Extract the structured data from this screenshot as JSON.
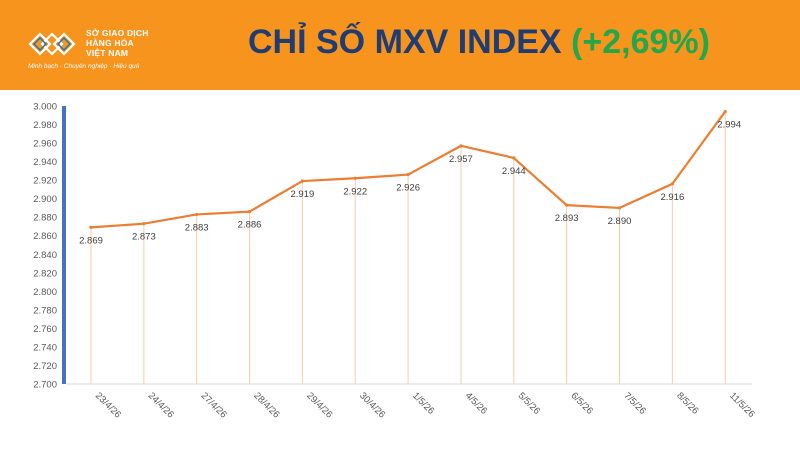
{
  "header": {
    "logo": {
      "line1": "SỞ GIAO DỊCH",
      "line2": "HÀNG HÓA",
      "line3": "VIỆT NAM",
      "slogan": "Minh bạch · Chuyên nghiệp · Hiệu quả"
    },
    "title": "CHỈ SỐ MXV INDEX",
    "change": "(+2,69%)"
  },
  "colors": {
    "header_bg": "#f7941d",
    "title": "#1f3d73",
    "change": "#22a84a",
    "line": "#ed7d31",
    "axis_bar": "#4472c4"
  },
  "chart_data": {
    "type": "line",
    "categories": [
      "23/4/26",
      "24/4/26",
      "27/4/26",
      "28/4/26",
      "29/4/26",
      "30/4/26",
      "1/5/26",
      "4/5/26",
      "5/5/26",
      "6/5/26",
      "7/5/26",
      "8/5/26",
      "11/5/26"
    ],
    "series": [
      {
        "values": [
          2869,
          2873,
          2883,
          2886,
          2919,
          2922,
          2926,
          2957,
          2944,
          2893,
          2890,
          2916,
          2994
        ],
        "labels": [
          "2.869",
          "2.873",
          "2.883",
          "2.886",
          "2.919",
          "2.922",
          "2.926",
          "2.957",
          "2.944",
          "2.893",
          "2.890",
          "2.916",
          "2.994"
        ]
      }
    ],
    "yticks": [
      2700,
      2720,
      2740,
      2760,
      2780,
      2800,
      2820,
      2840,
      2860,
      2880,
      2900,
      2920,
      2940,
      2960,
      2980,
      3000
    ],
    "ytick_labels": [
      "2.700",
      "2.720",
      "2.740",
      "2.760",
      "2.780",
      "2.800",
      "2.820",
      "2.840",
      "2.860",
      "2.880",
      "2.900",
      "2.920",
      "2.940",
      "2.960",
      "2.980",
      "3.000"
    ],
    "ylim": [
      2700,
      3000
    ],
    "title": "",
    "xlabel": "",
    "ylabel": "",
    "grid": false,
    "drop_lines": true
  }
}
